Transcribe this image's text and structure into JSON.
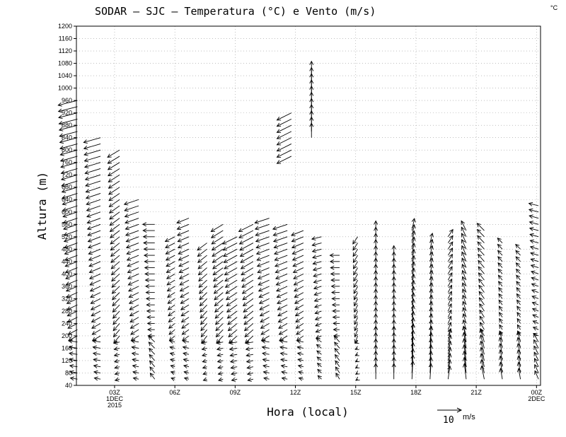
{
  "title": "SODAR – SJC – Temperatura (°C) e Vento (m/s)",
  "unit_corner": "°C",
  "chart_data": {
    "type": "wind-barb-time-height",
    "xlabel": "Hora (local)",
    "ylabel": "Altura (m)",
    "ylim": [
      40,
      1200
    ],
    "yticks": [
      40,
      80,
      120,
      160,
      200,
      240,
      280,
      320,
      360,
      400,
      440,
      480,
      520,
      560,
      600,
      640,
      680,
      720,
      760,
      800,
      840,
      880,
      920,
      960,
      1000,
      1040,
      1080,
      1120,
      1160,
      1200
    ],
    "xticks": [
      {
        "hour": 3,
        "lines": [
          "03Z",
          "1DEC",
          "2015"
        ]
      },
      {
        "hour": 6,
        "lines": [
          "06Z"
        ]
      },
      {
        "hour": 9,
        "lines": [
          "09Z"
        ]
      },
      {
        "hour": 12,
        "lines": [
          "12Z"
        ]
      },
      {
        "hour": 15,
        "lines": [
          "15Z"
        ]
      },
      {
        "hour": 18,
        "lines": [
          "18Z"
        ]
      },
      {
        "hour": 21,
        "lines": [
          "21Z"
        ]
      },
      {
        "hour": 24,
        "lines": [
          "00Z",
          "2DEC"
        ]
      }
    ],
    "xlim_hours": [
      1.1,
      24.2
    ],
    "grid": "dotted",
    "reference_vector": {
      "speed": 10,
      "unit_label": "m/s",
      "value_label": "10"
    },
    "profiles": [
      {
        "hour": 1.15,
        "top": 960,
        "u": -8,
        "v": -2
      },
      {
        "hour": 2.3,
        "top": 840,
        "u": -7,
        "v": -2
      },
      {
        "hour": 3.25,
        "top": 800,
        "u": -5,
        "v": -3
      },
      {
        "hour": 4.2,
        "top": 640,
        "u": -6,
        "v": -2
      },
      {
        "hour": 5.0,
        "top": 560,
        "u": -5,
        "v": 0
      },
      {
        "hour": 6.0,
        "top": 520,
        "u": -4,
        "v": -2
      },
      {
        "hour": 6.7,
        "top": 580,
        "u": -5,
        "v": -2
      },
      {
        "hour": 7.6,
        "top": 500,
        "u": -4,
        "v": -3
      },
      {
        "hour": 8.4,
        "top": 560,
        "u": -5,
        "v": -3
      },
      {
        "hour": 9.1,
        "top": 520,
        "u": -6,
        "v": -3
      },
      {
        "hour": 9.9,
        "top": 560,
        "u": -6,
        "v": -3
      },
      {
        "hour": 10.7,
        "top": 580,
        "u": -6,
        "v": -2
      },
      {
        "hour": 11.6,
        "top": 560,
        "u": -6,
        "v": -2
      },
      {
        "hour": 12.4,
        "top": 540,
        "u": -5,
        "v": -2
      },
      {
        "hour": 13.3,
        "top": 520,
        "u": -4,
        "v": -1
      },
      {
        "hour": 14.2,
        "top": 460,
        "u": -4,
        "v": 0
      },
      {
        "hour": 15.1,
        "top": 520,
        "u": -2,
        "v": -3
      },
      {
        "hour": 16.0,
        "top": 540,
        "u": 0,
        "v": 4
      },
      {
        "hour": 16.9,
        "top": 460,
        "u": 0,
        "v": 4
      },
      {
        "hour": 17.8,
        "top": 540,
        "u": 1,
        "v": 5
      },
      {
        "hour": 18.7,
        "top": 500,
        "u": 1,
        "v": 4
      },
      {
        "hour": 19.6,
        "top": 520,
        "u": 2,
        "v": 3
      },
      {
        "hour": 20.5,
        "top": 540,
        "u": -2,
        "v": 4
      },
      {
        "hour": 21.4,
        "top": 540,
        "u": -3,
        "v": 3
      },
      {
        "hour": 22.3,
        "top": 500,
        "u": -2,
        "v": 2
      },
      {
        "hour": 23.2,
        "top": 480,
        "u": -2,
        "v": 2
      },
      {
        "hour": 24.1,
        "top": 620,
        "u": -4,
        "v": 1
      }
    ],
    "upper_layers": [
      {
        "hour": 11.8,
        "bottom": 780,
        "top": 920,
        "u": -6,
        "v": -3
      },
      {
        "hour": 12.8,
        "bottom": 840,
        "top": 1040,
        "u": 0,
        "v": 6
      }
    ]
  }
}
